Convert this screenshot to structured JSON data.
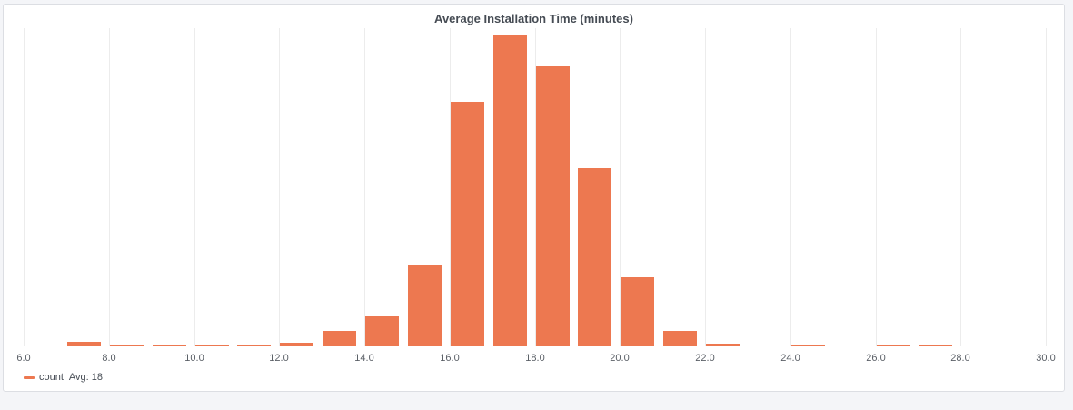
{
  "panel": {
    "title": "Average Installation Time (minutes)"
  },
  "legend": {
    "series_name": "count",
    "avg_label": "Avg: 18",
    "color": "#ed7850"
  },
  "chart_data": {
    "type": "bar",
    "title": "Average Installation Time (minutes)",
    "xlabel": "",
    "ylabel": "",
    "xlim": [
      6.0,
      30.0
    ],
    "x_ticks": [
      "6.0",
      "8.0",
      "10.0",
      "12.0",
      "14.0",
      "16.0",
      "18.0",
      "20.0",
      "22.0",
      "24.0",
      "26.0",
      "28.0",
      "30.0"
    ],
    "grid": true,
    "legend_position": "bottom-left",
    "bin_width": 1,
    "bins": [
      {
        "start": 7,
        "end": 8,
        "value": 5
      },
      {
        "start": 8,
        "end": 9,
        "value": 1
      },
      {
        "start": 9,
        "end": 10,
        "value": 2
      },
      {
        "start": 10,
        "end": 11,
        "value": 1
      },
      {
        "start": 11,
        "end": 12,
        "value": 2
      },
      {
        "start": 12,
        "end": 13,
        "value": 4
      },
      {
        "start": 13,
        "end": 14,
        "value": 17
      },
      {
        "start": 14,
        "end": 15,
        "value": 33
      },
      {
        "start": 15,
        "end": 16,
        "value": 90
      },
      {
        "start": 16,
        "end": 17,
        "value": 269
      },
      {
        "start": 17,
        "end": 18,
        "value": 343
      },
      {
        "start": 18,
        "end": 19,
        "value": 308
      },
      {
        "start": 19,
        "end": 20,
        "value": 196
      },
      {
        "start": 20,
        "end": 21,
        "value": 76
      },
      {
        "start": 21,
        "end": 22,
        "value": 17
      },
      {
        "start": 22,
        "end": 23,
        "value": 3
      },
      {
        "start": 24,
        "end": 25,
        "value": 1
      },
      {
        "start": 26,
        "end": 27,
        "value": 2
      },
      {
        "start": 27,
        "end": 28,
        "value": 1
      }
    ],
    "ylim": [
      0,
      350
    ],
    "series": [
      {
        "name": "count",
        "color": "#ed7850",
        "avg": 18
      }
    ]
  }
}
